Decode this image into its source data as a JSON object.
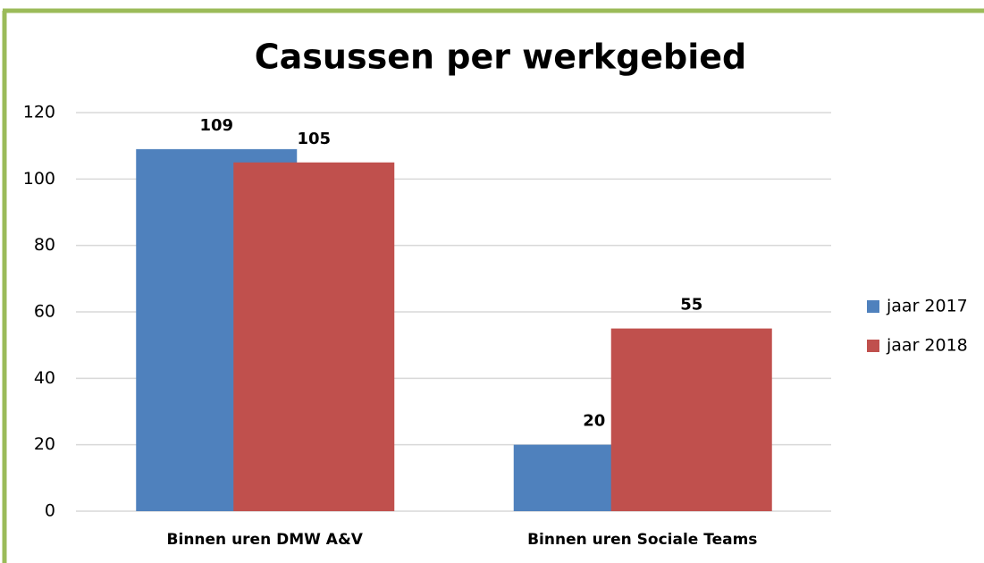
{
  "chart_data": {
    "type": "bar",
    "title": "Casussen per werkgebied",
    "categories": [
      "Binnen uren DMW A&V",
      "Binnen uren Sociale Teams"
    ],
    "series": [
      {
        "name": "jaar 2017",
        "color": "#4f81bd",
        "values": [
          109,
          20
        ]
      },
      {
        "name": "jaar 2018",
        "color": "#c0504d",
        "values": [
          105,
          55
        ]
      }
    ],
    "ylim": [
      0,
      120
    ],
    "yticks": [
      0,
      20,
      40,
      60,
      80,
      100,
      120
    ],
    "grid": true,
    "legend": "right"
  }
}
